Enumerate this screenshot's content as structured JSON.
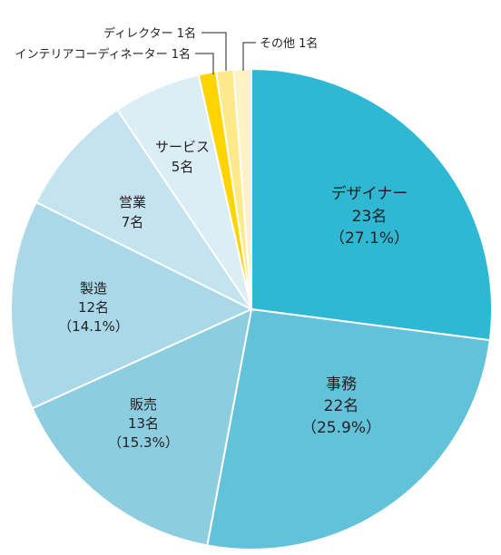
{
  "chart_data": {
    "type": "pie",
    "unit": "名",
    "slices": [
      {
        "name": "デザイナー",
        "value": 23,
        "percent_label": "（27.1%）",
        "color": "#2eb8d3"
      },
      {
        "name": "事務",
        "value": 22,
        "percent_label": "（25.9%）",
        "color": "#62c2d9"
      },
      {
        "name": "販売",
        "value": 13,
        "percent_label": "（15.3%）",
        "color": "#8dcde0"
      },
      {
        "name": "製造",
        "value": 12,
        "percent_label": "（14.1%）",
        "color": "#a9d9e8"
      },
      {
        "name": "営業",
        "value": 7,
        "percent_label": "",
        "color": "#c3e3ee"
      },
      {
        "name": "サービス",
        "value": 5,
        "percent_label": "",
        "color": "#dbeef5"
      },
      {
        "name": "インテリアコーディネーター",
        "value": 1,
        "percent_label": "",
        "color": "#ffd400"
      },
      {
        "name": "ディレクター",
        "value": 1,
        "percent_label": "",
        "color": "#ffe98a"
      },
      {
        "name": "その他",
        "value": 1,
        "percent_label": "",
        "color": "#fff3c4"
      }
    ],
    "labels": {
      "designer_name": "デザイナー",
      "designer_count": "23名",
      "designer_pct": "（27.1%）",
      "jimu_name": "事務",
      "jimu_count": "22名",
      "jimu_pct": "（25.9%）",
      "hanbai_name": "販売",
      "hanbai_count": "13名",
      "hanbai_pct": "（15.3%）",
      "seizo_name": "製造",
      "seizo_count": "12名",
      "seizo_pct": "（14.1%）",
      "eigyo_name": "営業",
      "eigyo_count": "7名",
      "service_name": "サービス",
      "service_count": "5名",
      "director_label": "ディレクター 1名",
      "interior_label": "インテリアコーディネーター 1名",
      "other_label": "その他 1名"
    }
  }
}
